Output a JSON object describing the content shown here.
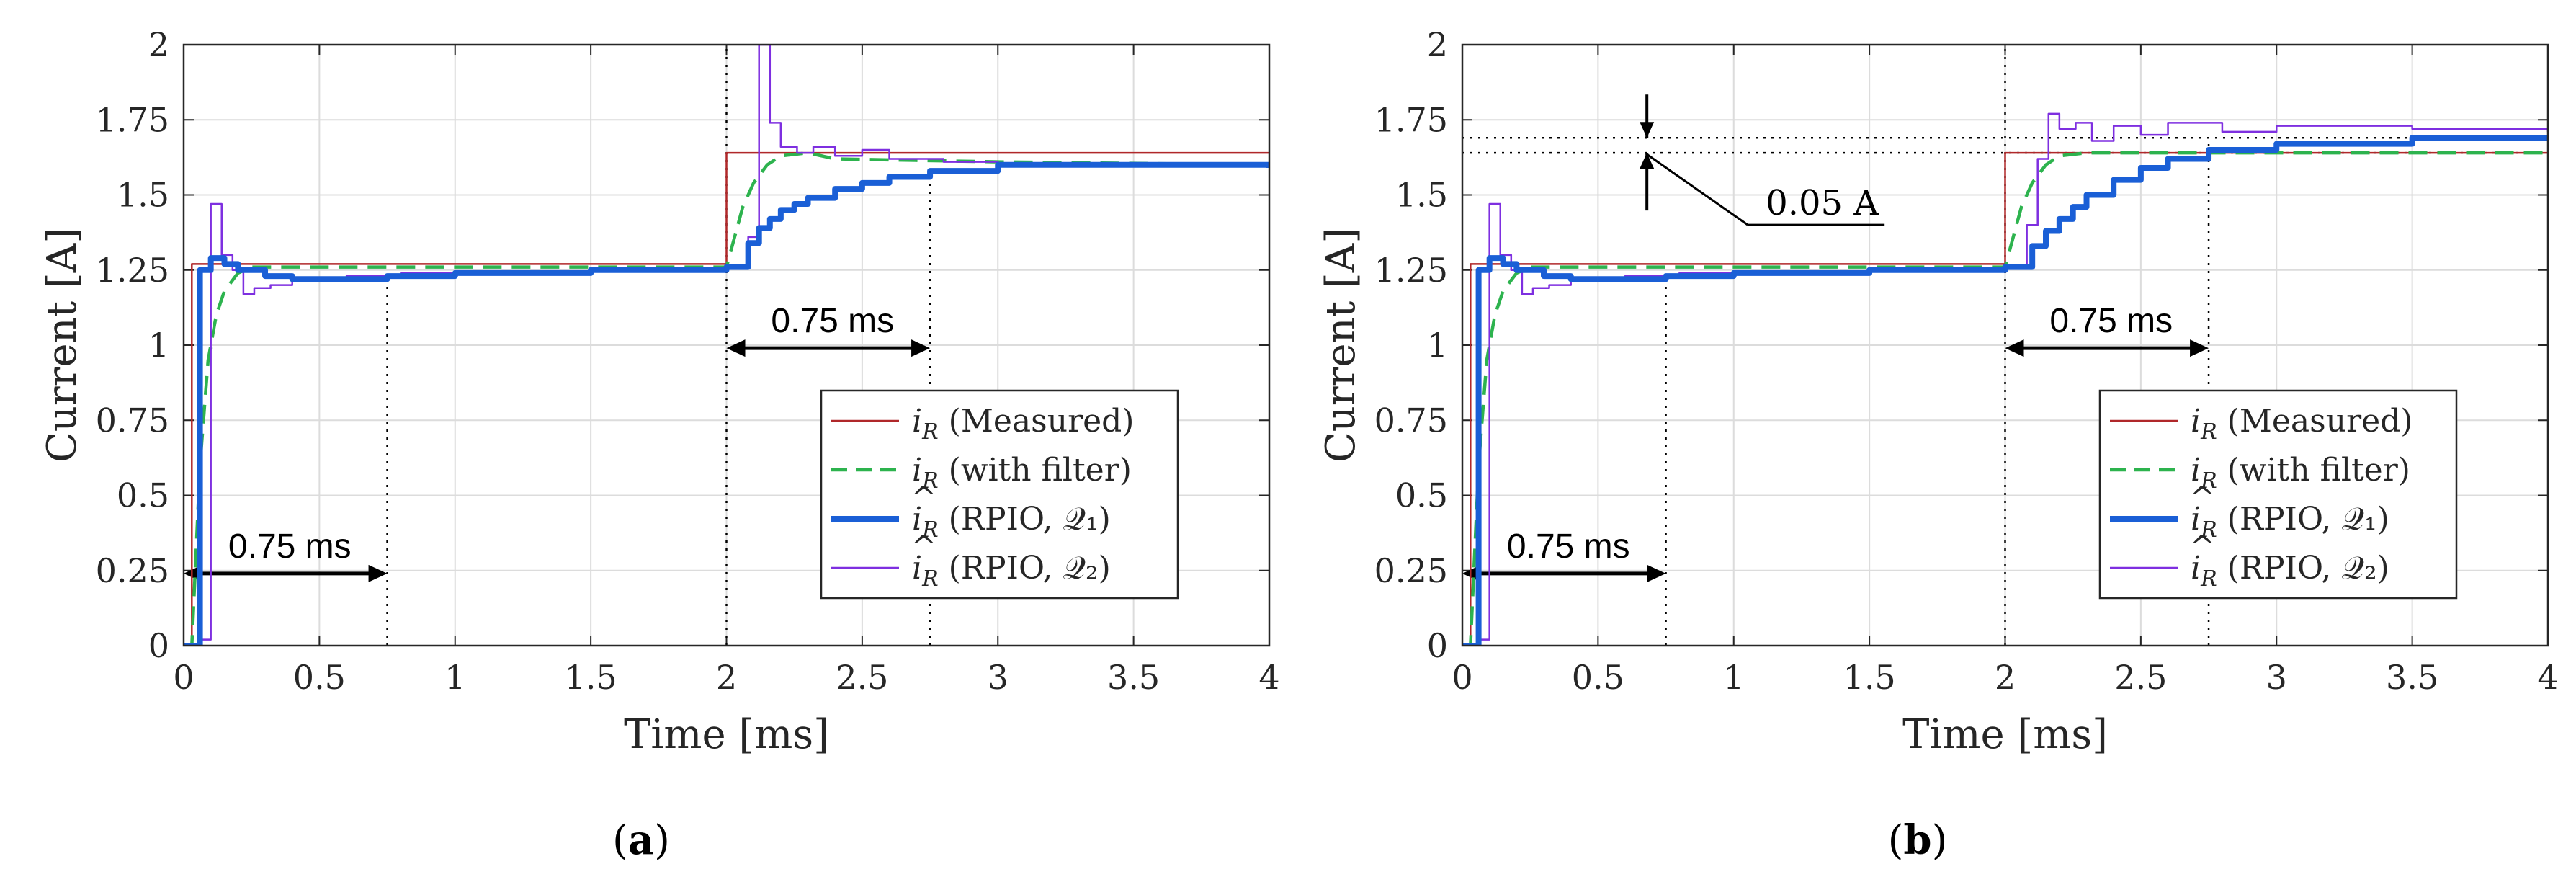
{
  "colors": {
    "measured": "#b0282a",
    "filter": "#2db34e",
    "rpio_q1": "#1a5fd6",
    "rpio_q2": "#7e2fe0",
    "axis": "#262626",
    "grid": "#dcdcdc",
    "annotation": "#000000"
  },
  "chart_data": [
    {
      "type": "line",
      "panel": "a",
      "caption_open": "(",
      "caption_letter": "a",
      "caption_close": ")",
      "xlabel": "Time [ms]",
      "ylabel": "Current [A]",
      "xlim": [
        0,
        4
      ],
      "ylim": [
        0,
        2
      ],
      "grid": true,
      "xticks": [
        "0",
        "0.5",
        "1",
        "1.5",
        "2",
        "2.5",
        "3",
        "3.5",
        "4"
      ],
      "yticks": [
        "0",
        "0.25",
        "0.5",
        "0.75",
        "1",
        "1.25",
        "1.5",
        "1.75",
        "2"
      ],
      "legend_position": "right-middle",
      "legend": [
        {
          "symbol": "i",
          "sub": "R",
          "hat": false,
          "desc": " (Measured)",
          "series": "measured"
        },
        {
          "symbol": "i",
          "sub": "R",
          "hat": false,
          "desc": " (with filter)",
          "series": "filter"
        },
        {
          "symbol": "i",
          "sub": "R",
          "hat": true,
          "desc": " (RPIO, 𝒬₁)",
          "series": "rpio_q1"
        },
        {
          "symbol": "i",
          "sub": "R",
          "hat": true,
          "desc": " (RPIO, 𝒬₂)",
          "series": "rpio_q2"
        }
      ],
      "series": [
        {
          "name": "measured",
          "label": "i_R (Measured)",
          "style": "thin",
          "x": [
            0,
            0.03,
            0.03,
            2.0,
            2.0,
            4.0
          ],
          "y": [
            0,
            0,
            1.27,
            1.27,
            1.64,
            1.64
          ]
        },
        {
          "name": "filter",
          "label": "i_R (with filter)",
          "style": "dashed",
          "x": [
            0,
            0.03,
            0.06,
            0.09,
            0.12,
            0.15,
            0.2,
            0.25,
            0.3,
            2.0,
            2.03,
            2.06,
            2.1,
            2.15,
            2.2,
            2.3,
            2.4,
            3.0,
            4.0
          ],
          "y": [
            0,
            0,
            0.6,
            0.95,
            1.1,
            1.18,
            1.24,
            1.26,
            1.26,
            1.26,
            1.36,
            1.46,
            1.54,
            1.6,
            1.63,
            1.64,
            1.62,
            1.61,
            1.6
          ]
        },
        {
          "name": "rpio_q1",
          "label": "î_R (RPIO, 𝒬₁)",
          "style": "thick",
          "x": [
            0,
            0.03,
            0.06,
            0.1,
            0.15,
            0.2,
            0.3,
            0.4,
            0.5,
            0.75,
            1.0,
            1.5,
            2.0,
            2.04,
            2.08,
            2.12,
            2.16,
            2.2,
            2.25,
            2.3,
            2.4,
            2.5,
            2.6,
            2.75,
            3.0,
            3.5,
            4.0
          ],
          "y": [
            0,
            0,
            1.25,
            1.29,
            1.27,
            1.25,
            1.23,
            1.22,
            1.22,
            1.23,
            1.24,
            1.25,
            1.26,
            1.26,
            1.34,
            1.39,
            1.42,
            1.45,
            1.47,
            1.49,
            1.52,
            1.54,
            1.56,
            1.58,
            1.6,
            1.6,
            1.59
          ]
        },
        {
          "name": "rpio_q2",
          "label": "î_R (RPIO, 𝒬₂)",
          "style": "thin",
          "x": [
            0,
            0.06,
            0.1,
            0.14,
            0.18,
            0.22,
            0.26,
            0.32,
            0.4,
            0.5,
            0.6,
            0.8,
            1.0,
            1.5,
            2.0,
            2.08,
            2.12,
            2.16,
            2.2,
            2.26,
            2.32,
            2.4,
            2.5,
            2.6,
            2.8,
            3.0,
            3.5,
            4.0
          ],
          "y": [
            0,
            0.02,
            1.47,
            1.3,
            1.25,
            1.17,
            1.19,
            1.2,
            1.22,
            1.22,
            1.23,
            1.24,
            1.24,
            1.25,
            1.26,
            1.36,
            2.0,
            1.74,
            1.66,
            1.64,
            1.66,
            1.63,
            1.65,
            1.62,
            1.61,
            1.6,
            1.6,
            1.59
          ]
        }
      ],
      "annotations": [
        {
          "type": "double-arrow",
          "text": "0.75 ms",
          "x0": 0,
          "x1": 0.75,
          "y": 0.24
        },
        {
          "type": "double-arrow",
          "text": "0.75 ms",
          "x0": 2.0,
          "x1": 2.75,
          "y": 0.99
        },
        {
          "type": "vline",
          "x": 0.75,
          "y0": 0,
          "y1": 1.23
        },
        {
          "type": "vline",
          "x": 2.0,
          "y0": 0,
          "y1": 2.0
        },
        {
          "type": "vline",
          "x": 2.75,
          "y0": 0,
          "y1": 1.58
        }
      ]
    },
    {
      "type": "line",
      "panel": "b",
      "caption_open": "(",
      "caption_letter": "b",
      "caption_close": ")",
      "xlabel": "Time [ms]",
      "ylabel": "Current [A]",
      "xlim": [
        0,
        4
      ],
      "ylim": [
        0,
        2
      ],
      "grid": true,
      "xticks": [
        "0",
        "0.5",
        "1",
        "1.5",
        "2",
        "2.5",
        "3",
        "3.5",
        "4"
      ],
      "yticks": [
        "0",
        "0.25",
        "0.5",
        "0.75",
        "1",
        "1.25",
        "1.5",
        "1.75",
        "2"
      ],
      "legend_position": "right-middle",
      "legend": [
        {
          "symbol": "i",
          "sub": "R",
          "hat": false,
          "desc": " (Measured)",
          "series": "measured"
        },
        {
          "symbol": "i",
          "sub": "R",
          "hat": false,
          "desc": " (with filter)",
          "series": "filter"
        },
        {
          "symbol": "i",
          "sub": "R",
          "hat": true,
          "desc": " (RPIO, 𝒬₁)",
          "series": "rpio_q1"
        },
        {
          "symbol": "i",
          "sub": "R",
          "hat": true,
          "desc": " (RPIO, 𝒬₂)",
          "series": "rpio_q2"
        }
      ],
      "series": [
        {
          "name": "measured",
          "label": "i_R (Measured)",
          "style": "thin",
          "x": [
            0,
            0.03,
            0.03,
            2.0,
            2.0,
            4.0
          ],
          "y": [
            0,
            0,
            1.27,
            1.27,
            1.64,
            1.64
          ]
        },
        {
          "name": "filter",
          "label": "i_R (with filter)",
          "style": "dashed",
          "x": [
            0,
            0.03,
            0.06,
            0.09,
            0.12,
            0.15,
            0.2,
            0.25,
            0.3,
            2.0,
            2.03,
            2.06,
            2.1,
            2.15,
            2.2,
            2.3,
            3.0,
            4.0
          ],
          "y": [
            0,
            0,
            0.6,
            0.95,
            1.1,
            1.18,
            1.24,
            1.26,
            1.26,
            1.26,
            1.36,
            1.46,
            1.54,
            1.6,
            1.63,
            1.64,
            1.64,
            1.64
          ]
        },
        {
          "name": "rpio_q1",
          "label": "î_R (RPIO, 𝒬₁)",
          "style": "thick",
          "x": [
            0,
            0.03,
            0.06,
            0.1,
            0.15,
            0.2,
            0.3,
            0.4,
            0.5,
            0.75,
            1.0,
            1.5,
            2.0,
            2.06,
            2.1,
            2.15,
            2.2,
            2.25,
            2.3,
            2.4,
            2.5,
            2.6,
            2.75,
            3.0,
            3.5,
            4.0
          ],
          "y": [
            0,
            0,
            1.25,
            1.29,
            1.27,
            1.25,
            1.23,
            1.22,
            1.22,
            1.23,
            1.24,
            1.25,
            1.26,
            1.26,
            1.33,
            1.38,
            1.42,
            1.46,
            1.5,
            1.55,
            1.59,
            1.62,
            1.65,
            1.67,
            1.69,
            1.7
          ]
        },
        {
          "name": "rpio_q2",
          "label": "î_R (RPIO, 𝒬₂)",
          "style": "thin",
          "x": [
            0,
            0.06,
            0.1,
            0.14,
            0.18,
            0.22,
            0.26,
            0.32,
            0.4,
            0.5,
            0.6,
            0.8,
            1.0,
            1.5,
            2.0,
            2.08,
            2.12,
            2.16,
            2.2,
            2.26,
            2.32,
            2.4,
            2.5,
            2.6,
            2.8,
            3.0,
            3.5,
            4.0
          ],
          "y": [
            0,
            0.02,
            1.47,
            1.3,
            1.25,
            1.17,
            1.19,
            1.2,
            1.22,
            1.22,
            1.23,
            1.24,
            1.24,
            1.25,
            1.26,
            1.4,
            1.62,
            1.77,
            1.72,
            1.74,
            1.68,
            1.73,
            1.7,
            1.74,
            1.71,
            1.73,
            1.72,
            1.71
          ]
        }
      ],
      "annotations": [
        {
          "type": "double-arrow",
          "text": "0.75 ms",
          "x0": 0,
          "x1": 0.75,
          "y": 0.24
        },
        {
          "type": "double-arrow",
          "text": "0.75 ms",
          "x0": 2.0,
          "x1": 2.75,
          "y": 0.99
        },
        {
          "type": "vline",
          "x": 0.75,
          "y0": 0,
          "y1": 1.23
        },
        {
          "type": "vline",
          "x": 2.0,
          "y0": 0,
          "y1": 2.0
        },
        {
          "type": "vline",
          "x": 2.75,
          "y0": 0,
          "y1": 1.67
        },
        {
          "type": "hline",
          "y": 1.69
        },
        {
          "type": "hline",
          "y": 1.64
        },
        {
          "type": "gap-marker",
          "text": "0.05 A",
          "x": 0.68,
          "y_low": 1.64,
          "y_high": 1.69
        }
      ]
    }
  ]
}
